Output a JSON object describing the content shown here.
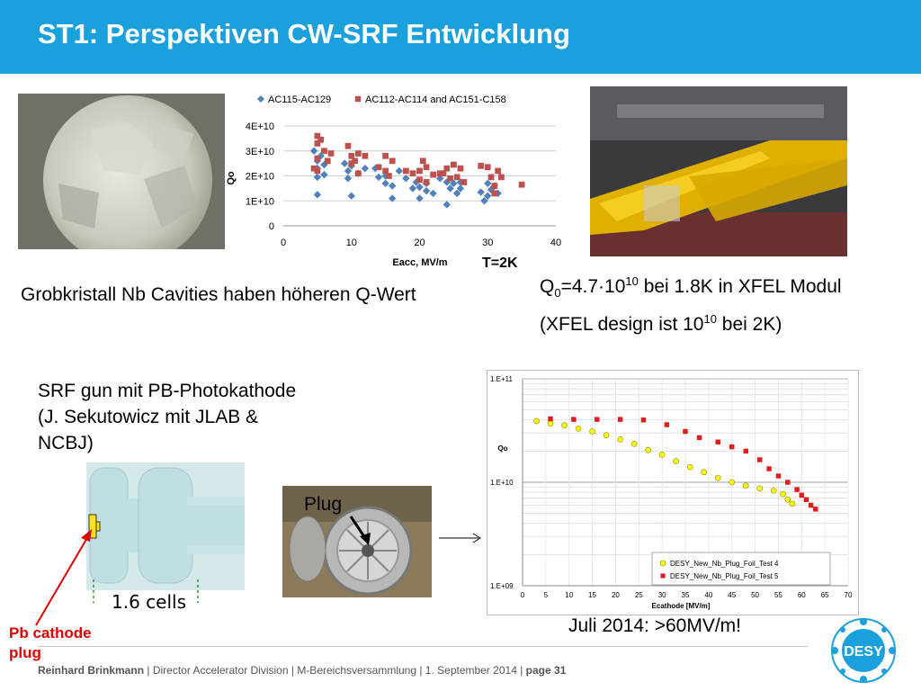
{
  "slide": {
    "title": "ST1: Perspektiven CW-SRF Entwicklung",
    "caption_grobkristall": "Grobkristall Nb Cavities haben höheren Q-Wert",
    "q0_line1_pre": "Q",
    "q0_line1_sub": "0",
    "q0_line1_mid": "=4.7·10",
    "q0_line1_sup": "10",
    "q0_line1_post": " bei 1.8K in XFEL Modul",
    "q0_line2_pre": "(XFEL design ist 10",
    "q0_line2_sup": "10",
    "q0_line2_post": " bei 2K)",
    "srf_gun_line1": "SRF gun mit PB-Photokathode",
    "srf_gun_line2": "(J. Sekutowicz mit JLAB &",
    "srf_gun_line3": "NCBJ)",
    "plug_label": "Plug",
    "cells_label": "1.6 cells",
    "pb_cathode_line1": "Pb cathode",
    "pb_cathode_line2": "plug",
    "juli_text": "Juli 2014:  >60MV/m!",
    "t2k_label": "T=2K"
  },
  "footer": {
    "author": "Reinhard Brinkmann",
    "rest": "  |  Director Accelerator Division  |  M-Bereichsversammlung  | 1. September 2014  |  ",
    "page": "page 31"
  },
  "logo": {
    "text": "DESY"
  },
  "colors": {
    "header": "#1aa1dd",
    "series_blue": "#4f81bd",
    "series_red": "#c0504d",
    "series_yellow": "#ffff00",
    "series_crimson": "#e41a1c",
    "pb_red": "#e00000"
  },
  "chart_data": [
    {
      "type": "scatter",
      "xlabel": "Eacc, MV/m",
      "ylabel": "Qo",
      "xlim": [
        0,
        40
      ],
      "ylim": [
        0,
        40000000000.0
      ],
      "x_ticks": [
        "0",
        "10",
        "20",
        "30",
        "40"
      ],
      "y_ticks": [
        "0",
        "1E+10",
        "2E+10",
        "3E+10",
        "4E+10"
      ],
      "grid": true,
      "legend_position": "top",
      "series": [
        {
          "name": "AC115-AC129",
          "marker": "diamond",
          "color": "#4f81bd",
          "points": [
            [
              4.5,
              30000000000.0
            ],
            [
              5,
              26000000000.0
            ],
            [
              5,
              23000000000.0
            ],
            [
              5,
              19500000000.0
            ],
            [
              5,
              12500000000.0
            ],
            [
              5.5,
              28000000000.0
            ],
            [
              6,
              24500000000.0
            ],
            [
              6,
              20500000000.0
            ],
            [
              9,
              25000000000.0
            ],
            [
              9.5,
              22000000000.0
            ],
            [
              9.5,
              19000000000.0
            ],
            [
              10,
              12000000000.0
            ],
            [
              10,
              24000000000.0
            ],
            [
              11,
              21000000000.0
            ],
            [
              12,
              23000000000.0
            ],
            [
              13.5,
              23000000000.0
            ],
            [
              14,
              19500000000.0
            ],
            [
              15,
              20000000000.0
            ],
            [
              15,
              17000000000.0
            ],
            [
              16,
              16000000000.0
            ],
            [
              16,
              11000000000.0
            ],
            [
              17,
              22000000000.0
            ],
            [
              18,
              19000000000.0
            ],
            [
              19,
              15000000000.0
            ],
            [
              19.5,
              17500000000.0
            ],
            [
              20,
              15500000000.0
            ],
            [
              20,
              11000000000.0
            ],
            [
              21,
              17000000000.0
            ],
            [
              21,
              14000000000.0
            ],
            [
              22,
              13000000000.0
            ],
            [
              23,
              19000000000.0
            ],
            [
              24,
              17500000000.0
            ],
            [
              24,
              8500000000.0
            ],
            [
              24.5,
              15000000000.0
            ],
            [
              25,
              17000000000.0
            ],
            [
              25.5,
              13000000000.0
            ],
            [
              26,
              17500000000.0
            ],
            [
              26,
              15000000000.0
            ],
            [
              29,
              13500000000.0
            ],
            [
              29.5,
              10000000000.0
            ],
            [
              30,
              17000000000.0
            ],
            [
              30,
              12000000000.0
            ],
            [
              30.5,
              14500000000.0
            ],
            [
              31,
              16000000000.0
            ],
            [
              31.5,
              13000000000.0
            ]
          ]
        },
        {
          "name": "AC112-AC114 and AC151-C158",
          "marker": "square",
          "color": "#c0504d",
          "points": [
            [
              4.5,
              23000000000.0
            ],
            [
              5,
              36000000000.0
            ],
            [
              5,
              33000000000.0
            ],
            [
              5,
              27000000000.0
            ],
            [
              5,
              22000000000.0
            ],
            [
              5.5,
              34500000000.0
            ],
            [
              6,
              30000000000.0
            ],
            [
              6.5,
              26000000000.0
            ],
            [
              7,
              29000000000.0
            ],
            [
              9.5,
              32000000000.0
            ],
            [
              10,
              28000000000.0
            ],
            [
              10,
              25000000000.0
            ],
            [
              10.5,
              26000000000.0
            ],
            [
              11,
              21000000000.0
            ],
            [
              11,
              29000000000.0
            ],
            [
              12,
              28000000000.0
            ],
            [
              14,
              23500000000.0
            ],
            [
              15,
              28000000000.0
            ],
            [
              15,
              22000000000.0
            ],
            [
              15.5,
              20000000000.0
            ],
            [
              16,
              26000000000.0
            ],
            [
              18,
              22000000000.0
            ],
            [
              19,
              21000000000.0
            ],
            [
              20,
              22000000000.0
            ],
            [
              20,
              18500000000.0
            ],
            [
              20.5,
              26000000000.0
            ],
            [
              21,
              23500000000.0
            ],
            [
              21,
              17500000000.0
            ],
            [
              22,
              20500000000.0
            ],
            [
              23,
              21000000000.0
            ],
            [
              23.5,
              21000000000.0
            ],
            [
              24,
              23000000000.0
            ],
            [
              24.5,
              19000000000.0
            ],
            [
              25,
              24500000000.0
            ],
            [
              25.5,
              19500000000.0
            ],
            [
              26,
              23000000000.0
            ],
            [
              26.5,
              17500000000.0
            ],
            [
              29,
              24000000000.0
            ],
            [
              30,
              23500000000.0
            ],
            [
              30.5,
              19500000000.0
            ],
            [
              31,
              16000000000.0
            ],
            [
              31,
              13000000000.0
            ],
            [
              31.5,
              22000000000.0
            ],
            [
              32,
              19500000000.0
            ],
            [
              35,
              16500000000.0
            ]
          ]
        }
      ]
    },
    {
      "type": "scatter",
      "xlabel": "Ecathode [MV/m]",
      "ylabel": "Qo",
      "xlim": [
        0,
        70
      ],
      "ylim": [
        1000000000.0,
        100000000000.0
      ],
      "yscale": "log",
      "x_ticks": [
        "0",
        "5",
        "10",
        "15",
        "20",
        "25",
        "30",
        "35",
        "40",
        "45",
        "50",
        "55",
        "60",
        "65",
        "70"
      ],
      "y_ticks": [
        "1.E+09",
        "1.E+10",
        "1.E+11"
      ],
      "grid": true,
      "legend_position": "bottom-right",
      "series": [
        {
          "name": "DESY_New_Nb_Plug_Foil_Test 4",
          "marker": "circle",
          "color": "#ffff00",
          "points": [
            [
              3,
              39000000000.0
            ],
            [
              6,
              37000000000.0
            ],
            [
              9,
              35500000000.0
            ],
            [
              12,
              33000000000.0
            ],
            [
              15,
              31000000000.0
            ],
            [
              18,
              28500000000.0
            ],
            [
              21,
              26000000000.0
            ],
            [
              24,
              23500000000.0
            ],
            [
              27,
              20500000000.0
            ],
            [
              30,
              18500000000.0
            ],
            [
              33,
              16000000000.0
            ],
            [
              36,
              14000000000.0
            ],
            [
              39,
              12500000000.0
            ],
            [
              42,
              11000000000.0
            ],
            [
              45,
              10000000000.0
            ],
            [
              48,
              9300000000.0
            ],
            [
              51,
              8700000000.0
            ],
            [
              54,
              8300000000.0
            ],
            [
              56,
              7700000000.0
            ],
            [
              57,
              6800000000.0
            ],
            [
              58,
              6200000000.0
            ]
          ]
        },
        {
          "name": "DESY_New_Nb_Plug_Foil_Test 5",
          "marker": "square",
          "color": "#e41a1c",
          "points": [
            [
              6,
              41000000000.0
            ],
            [
              11,
              40500000000.0
            ],
            [
              16,
              40500000000.0
            ],
            [
              21,
              40500000000.0
            ],
            [
              26,
              40000000000.0
            ],
            [
              31,
              36000000000.0
            ],
            [
              35,
              31000000000.0
            ],
            [
              38,
              27000000000.0
            ],
            [
              42,
              24500000000.0
            ],
            [
              45,
              22000000000.0
            ],
            [
              48,
              20000000000.0
            ],
            [
              51,
              16500000000.0
            ],
            [
              53,
              13500000000.0
            ],
            [
              55,
              11500000000.0
            ],
            [
              57,
              10000000000.0
            ],
            [
              59,
              8500000000.0
            ],
            [
              60,
              7500000000.0
            ],
            [
              61,
              6800000000.0
            ],
            [
              62,
              6000000000.0
            ],
            [
              63,
              5500000000.0
            ]
          ]
        }
      ]
    }
  ]
}
